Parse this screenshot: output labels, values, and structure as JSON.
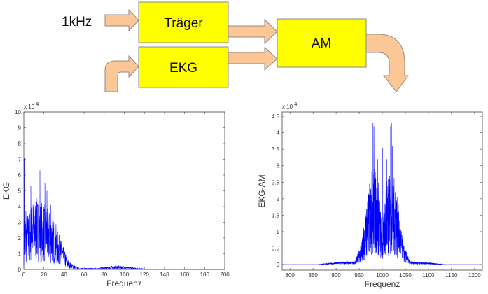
{
  "diagram": {
    "input_label": "1kHz",
    "carrier_block": "Träger",
    "ekg_block": "EKG",
    "am_block": "AM",
    "colors": {
      "block": "#ffff00",
      "arrow": "#fbc796"
    }
  },
  "chart_data": [
    {
      "type": "line",
      "ylabel": "EKG",
      "xlabel": "Frequenz",
      "y_multiplier": "x 10",
      "y_exponent": "4",
      "xlim": [
        0,
        200
      ],
      "ylim": [
        0,
        10
      ],
      "xticks": [
        "0",
        "20",
        "40",
        "60",
        "80",
        "100",
        "120",
        "140",
        "160",
        "180",
        "200"
      ],
      "yticks": [
        "0",
        "1",
        "2",
        "3",
        "4",
        "5",
        "6",
        "7",
        "8",
        "9",
        "10"
      ],
      "color": "#0000ff",
      "grid": false,
      "envelope": [
        [
          0,
          2.0
        ],
        [
          5,
          2.3
        ],
        [
          10,
          2.8
        ],
        [
          20,
          2.6
        ],
        [
          30,
          2.0
        ],
        [
          38,
          1.0
        ],
        [
          45,
          0.3
        ],
        [
          55,
          0.05
        ],
        [
          70,
          0.05
        ],
        [
          85,
          0.12
        ],
        [
          95,
          0.15
        ],
        [
          110,
          0.08
        ],
        [
          120,
          0.02
        ],
        [
          200,
          0.0
        ]
      ],
      "peaks": [
        [
          0.5,
          7.1
        ],
        [
          2,
          3.7
        ],
        [
          4,
          3.3
        ],
        [
          7,
          5.3
        ],
        [
          8,
          6.35
        ],
        [
          10,
          5.2
        ],
        [
          13,
          4.3
        ],
        [
          16,
          6.3
        ],
        [
          17,
          8.45
        ],
        [
          19,
          8.65
        ],
        [
          21,
          5.5
        ],
        [
          23,
          5.0
        ],
        [
          27,
          4.1
        ],
        [
          29,
          4.5
        ],
        [
          31,
          4.3
        ],
        [
          35,
          2.1
        ]
      ]
    },
    {
      "type": "line",
      "ylabel": "EKG-AM",
      "xlabel": "Frequenz",
      "y_multiplier": "x 10",
      "y_exponent": "4",
      "xlim": [
        783,
        1217
      ],
      "ylim": [
        -0.17,
        4.63
      ],
      "xticks": [
        "800",
        "850",
        "900",
        "950",
        "1000",
        "1050",
        "1100",
        "1150",
        "1200"
      ],
      "yticks": [
        "0",
        "0.5",
        "1",
        "1.5",
        "2",
        "2.5",
        "3",
        "3.5",
        "4",
        "4.5"
      ],
      "color": "#0000ff",
      "grid": false,
      "envelope": [
        [
          783,
          0
        ],
        [
          860,
          0
        ],
        [
          905,
          0.05
        ],
        [
          940,
          0.06
        ],
        [
          955,
          0.4
        ],
        [
          965,
          1.1
        ],
        [
          980,
          1.9
        ],
        [
          993,
          1.5
        ],
        [
          1000,
          0.5
        ],
        [
          1007,
          1.5
        ],
        [
          1020,
          1.9
        ],
        [
          1035,
          1.1
        ],
        [
          1045,
          0.4
        ],
        [
          1060,
          0.06
        ],
        [
          1090,
          0.05
        ],
        [
          1135,
          0
        ],
        [
          1217,
          0
        ]
      ],
      "peaks": [
        [
          968,
          1.9
        ],
        [
          972,
          2.1
        ],
        [
          975,
          2.3
        ],
        [
          978,
          2.8
        ],
        [
          980,
          4.3
        ],
        [
          982,
          4.2
        ],
        [
          986,
          2.6
        ],
        [
          990,
          3.2
        ],
        [
          999,
          3.55
        ],
        [
          1001,
          3.55
        ],
        [
          1010,
          3.2
        ],
        [
          1013,
          2.6
        ],
        [
          1018,
          4.2
        ],
        [
          1020,
          4.3
        ],
        [
          1022,
          3.6
        ],
        [
          1025,
          2.2
        ],
        [
          1028,
          2.2
        ]
      ]
    }
  ]
}
